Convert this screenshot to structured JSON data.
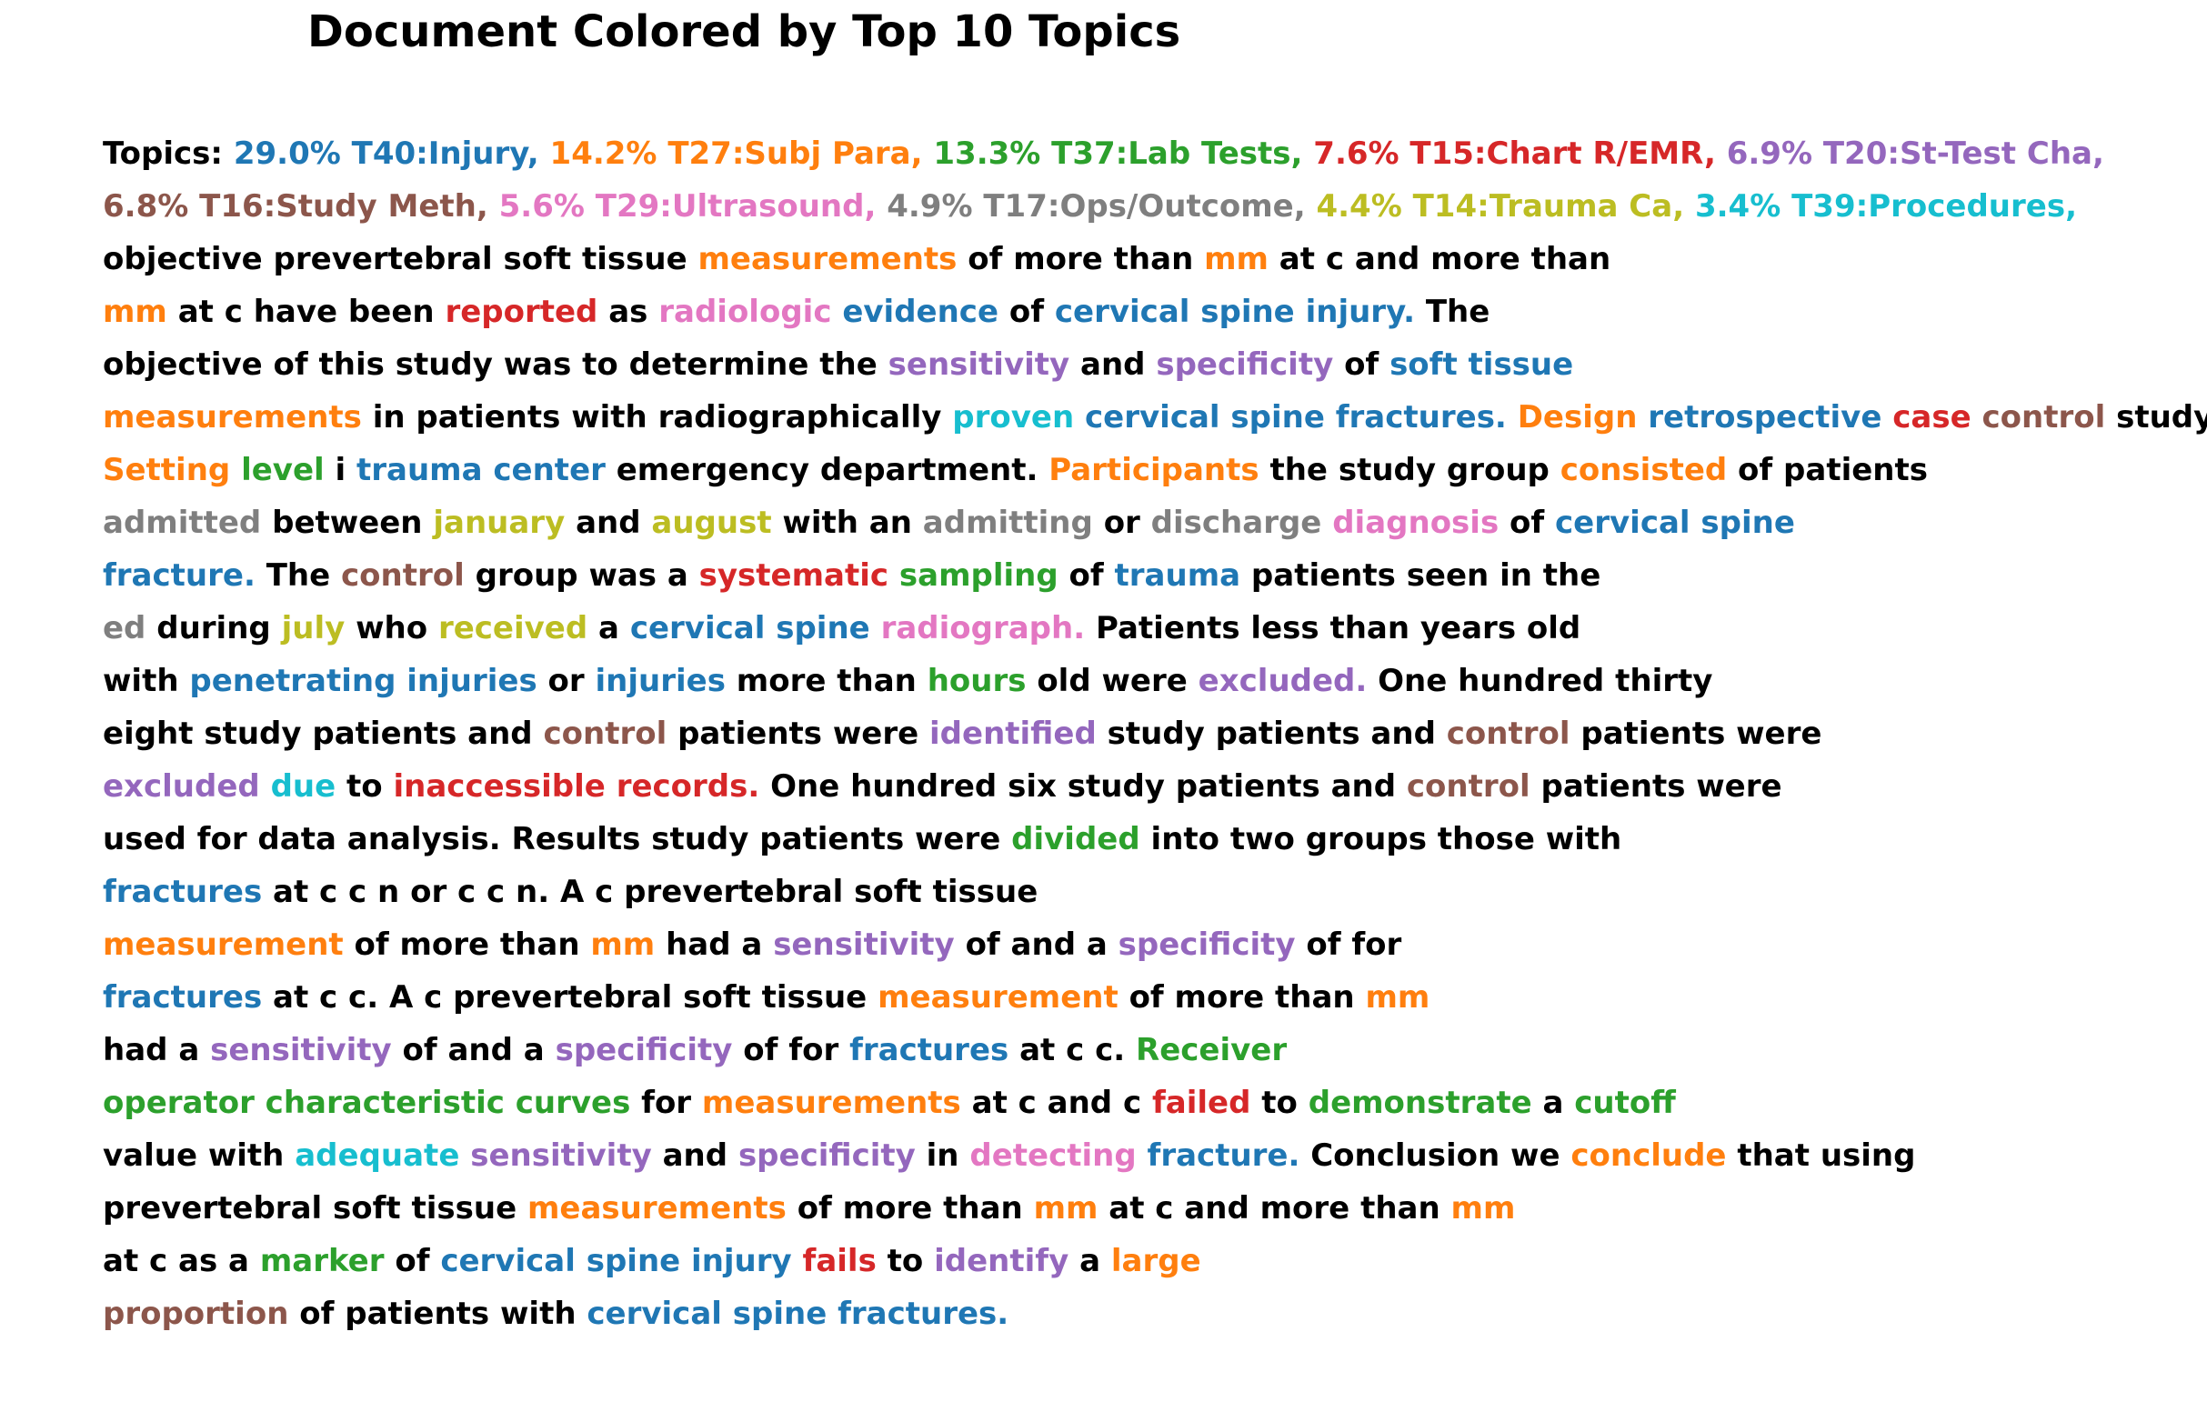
{
  "title": "Document Colored by Top 10 Topics",
  "topic_colors": [
    "#1f77b4",
    "#ff7f0e",
    "#2ca02c",
    "#d62728",
    "#9467bd",
    "#8c564b",
    "#e377c2",
    "#7f7f7f",
    "#bcbd22",
    "#17becf"
  ],
  "lines": [
    [
      [
        "Topics: ",
        -1
      ],
      [
        "29.0% T40:Injury,",
        0
      ],
      [
        " ",
        -1
      ],
      [
        "14.2% T27:Subj Para,",
        1
      ],
      [
        " ",
        -1
      ],
      [
        "13.3% T37:Lab Tests,",
        2
      ],
      [
        " ",
        -1
      ],
      [
        "7.6% T15:Chart R/EMR,",
        3
      ],
      [
        " ",
        -1
      ],
      [
        "6.9% T20:St-Test Cha,",
        4
      ]
    ],
    [
      [
        "6.8% T16:Study Meth,",
        5
      ],
      [
        " ",
        -1
      ],
      [
        "5.6% T29:Ultrasound,",
        6
      ],
      [
        " ",
        -1
      ],
      [
        "4.9% T17:Ops/Outcome,",
        7
      ],
      [
        " ",
        -1
      ],
      [
        "4.4% T14:Trauma Ca,",
        8
      ],
      [
        " ",
        -1
      ],
      [
        "3.4% T39:Procedures,",
        9
      ]
    ],
    [
      [
        "objective prevertebral soft tissue ",
        -1
      ],
      [
        "measurements",
        1
      ],
      [
        " of more than ",
        -1
      ],
      [
        "mm",
        1
      ],
      [
        " at c and more than",
        -1
      ]
    ],
    [
      [
        "mm",
        1
      ],
      [
        " at c have been ",
        -1
      ],
      [
        "reported",
        3
      ],
      [
        " as ",
        -1
      ],
      [
        "radiologic",
        6
      ],
      [
        " ",
        -1
      ],
      [
        "evidence",
        0
      ],
      [
        " of ",
        -1
      ],
      [
        "cervical spine injury.",
        0
      ],
      [
        " The",
        -1
      ]
    ],
    [
      [
        "objective of this study was to determine the ",
        -1
      ],
      [
        "sensitivity",
        4
      ],
      [
        " and ",
        -1
      ],
      [
        "specificity",
        4
      ],
      [
        " of ",
        -1
      ],
      [
        "soft tissue",
        0
      ]
    ],
    [
      [
        "measurements",
        1
      ],
      [
        " in patients with radiographically ",
        -1
      ],
      [
        "proven",
        9
      ],
      [
        " ",
        -1
      ],
      [
        "cervical spine fractures.",
        0
      ],
      [
        " ",
        -1
      ],
      [
        "Design",
        1
      ],
      [
        " ",
        -1
      ],
      [
        "retrospective",
        0
      ],
      [
        " ",
        -1
      ],
      [
        "case",
        3
      ],
      [
        " ",
        -1
      ],
      [
        "control",
        5
      ],
      [
        " study.",
        -1
      ]
    ],
    [
      [
        "Setting",
        1
      ],
      [
        " ",
        -1
      ],
      [
        "level",
        2
      ],
      [
        " i ",
        -1
      ],
      [
        "trauma center",
        0
      ],
      [
        " emergency department. ",
        -1
      ],
      [
        "Participants",
        1
      ],
      [
        " the study group ",
        -1
      ],
      [
        "consisted",
        1
      ],
      [
        " of patients",
        -1
      ]
    ],
    [
      [
        "admitted",
        7
      ],
      [
        " between ",
        -1
      ],
      [
        "january",
        8
      ],
      [
        " and ",
        -1
      ],
      [
        "august",
        8
      ],
      [
        " with an ",
        -1
      ],
      [
        "admitting",
        7
      ],
      [
        " or ",
        -1
      ],
      [
        "discharge",
        7
      ],
      [
        " ",
        -1
      ],
      [
        "diagnosis",
        6
      ],
      [
        " of ",
        -1
      ],
      [
        "cervical spine",
        0
      ]
    ],
    [
      [
        "fracture.",
        0
      ],
      [
        " The ",
        -1
      ],
      [
        "control",
        5
      ],
      [
        " group was a ",
        -1
      ],
      [
        "systematic",
        3
      ],
      [
        " ",
        -1
      ],
      [
        "sampling",
        2
      ],
      [
        " of ",
        -1
      ],
      [
        "trauma",
        0
      ],
      [
        " patients seen in the",
        -1
      ]
    ],
    [
      [
        "ed",
        7
      ],
      [
        " during ",
        -1
      ],
      [
        "july",
        8
      ],
      [
        " who ",
        -1
      ],
      [
        "received",
        8
      ],
      [
        " a ",
        -1
      ],
      [
        "cervical spine",
        0
      ],
      [
        " ",
        -1
      ],
      [
        "radiograph.",
        6
      ],
      [
        " Patients less than years old",
        -1
      ]
    ],
    [
      [
        "with ",
        -1
      ],
      [
        "penetrating injuries",
        0
      ],
      [
        " or ",
        -1
      ],
      [
        "injuries",
        0
      ],
      [
        " more than ",
        -1
      ],
      [
        "hours",
        2
      ],
      [
        " old were ",
        -1
      ],
      [
        "excluded.",
        4
      ],
      [
        " One hundred thirty",
        -1
      ]
    ],
    [
      [
        "eight study patients and ",
        -1
      ],
      [
        "control",
        5
      ],
      [
        " patients were ",
        -1
      ],
      [
        "identified",
        4
      ],
      [
        " study patients and ",
        -1
      ],
      [
        "control",
        5
      ],
      [
        " patients were",
        -1
      ]
    ],
    [
      [
        "excluded",
        4
      ],
      [
        " ",
        -1
      ],
      [
        "due",
        9
      ],
      [
        " to ",
        -1
      ],
      [
        "inaccessible records.",
        3
      ],
      [
        " One hundred six study patients and ",
        -1
      ],
      [
        "control",
        5
      ],
      [
        " patients were",
        -1
      ]
    ],
    [
      [
        "used for data analysis. Results study patients were ",
        -1
      ],
      [
        "divided",
        2
      ],
      [
        " into two groups those with",
        -1
      ]
    ],
    [
      [
        "fractures",
        0
      ],
      [
        " at c c n or c c n. A c prevertebral soft tissue",
        -1
      ]
    ],
    [
      [
        "measurement",
        1
      ],
      [
        " of more than ",
        -1
      ],
      [
        "mm",
        1
      ],
      [
        " had a ",
        -1
      ],
      [
        "sensitivity",
        4
      ],
      [
        " of and a ",
        -1
      ],
      [
        "specificity",
        4
      ],
      [
        " of for",
        -1
      ]
    ],
    [
      [
        "fractures",
        0
      ],
      [
        " at c c. A c prevertebral soft tissue ",
        -1
      ],
      [
        "measurement",
        1
      ],
      [
        " of more than ",
        -1
      ],
      [
        "mm",
        1
      ]
    ],
    [
      [
        "had a ",
        -1
      ],
      [
        "sensitivity",
        4
      ],
      [
        " of and a ",
        -1
      ],
      [
        "specificity",
        4
      ],
      [
        " of for ",
        -1
      ],
      [
        "fractures",
        0
      ],
      [
        " at c c. ",
        -1
      ],
      [
        "Receiver",
        2
      ]
    ],
    [
      [
        "operator characteristic curves",
        2
      ],
      [
        " for ",
        -1
      ],
      [
        "measurements",
        1
      ],
      [
        " at c and c ",
        -1
      ],
      [
        "failed",
        3
      ],
      [
        " to ",
        -1
      ],
      [
        "demonstrate",
        2
      ],
      [
        " a ",
        -1
      ],
      [
        "cutoff",
        2
      ]
    ],
    [
      [
        "value with ",
        -1
      ],
      [
        "adequate",
        9
      ],
      [
        " ",
        -1
      ],
      [
        "sensitivity",
        4
      ],
      [
        " and ",
        -1
      ],
      [
        "specificity",
        4
      ],
      [
        " in ",
        -1
      ],
      [
        "detecting",
        6
      ],
      [
        " ",
        -1
      ],
      [
        "fracture.",
        0
      ],
      [
        " Conclusion we ",
        -1
      ],
      [
        "conclude",
        1
      ],
      [
        " that using",
        -1
      ]
    ],
    [
      [
        "prevertebral soft tissue ",
        -1
      ],
      [
        "measurements",
        1
      ],
      [
        " of more than ",
        -1
      ],
      [
        "mm",
        1
      ],
      [
        " at c and more than ",
        -1
      ],
      [
        "mm",
        1
      ]
    ],
    [
      [
        "at c as a ",
        -1
      ],
      [
        "marker",
        2
      ],
      [
        " of ",
        -1
      ],
      [
        "cervical spine injury",
        0
      ],
      [
        " ",
        -1
      ],
      [
        "fails",
        3
      ],
      [
        " to ",
        -1
      ],
      [
        "identify",
        4
      ],
      [
        " a ",
        -1
      ],
      [
        "large",
        1
      ]
    ],
    [
      [
        "proportion",
        5
      ],
      [
        " of patients with ",
        -1
      ],
      [
        "cervical spine fractures.",
        0
      ]
    ]
  ]
}
